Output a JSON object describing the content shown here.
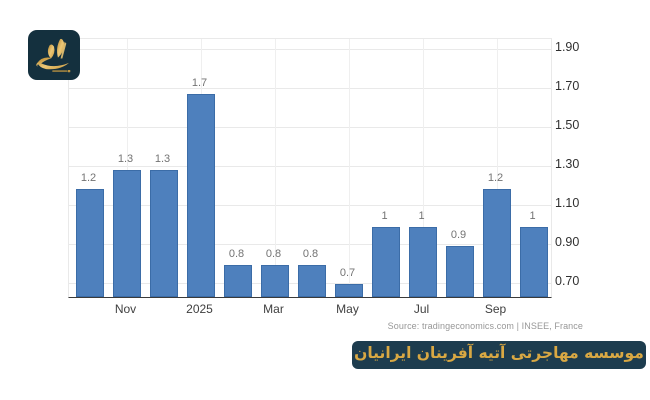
{
  "logo": {
    "name": "atieh-afarinan-logo",
    "background_color": "#14303e",
    "accent_color": "#d2a243",
    "icon": "gold-bird-flame-logo"
  },
  "chart_data": {
    "type": "bar",
    "title": "",
    "xlabel": "",
    "ylabel": "",
    "values": [
      1.2,
      1.3,
      1.3,
      1.7,
      0.8,
      0.8,
      0.8,
      0.7,
      1,
      1,
      0.9,
      1.2,
      1
    ],
    "value_labels": [
      "1.2",
      "1.3",
      "1.3",
      "1.7",
      "0.8",
      "0.8",
      "0.8",
      "0.7",
      "1",
      "1",
      "0.9",
      "1.2",
      "1"
    ],
    "x_ticks": [
      {
        "label": "Nov",
        "bar_index": 1
      },
      {
        "label": "2025",
        "bar_index": 3
      },
      {
        "label": "Mar",
        "bar_index": 5
      },
      {
        "label": "May",
        "bar_index": 7
      },
      {
        "label": "Jul",
        "bar_index": 9
      },
      {
        "label": "Sep",
        "bar_index": 11
      }
    ],
    "y_ticks": [
      "1.90",
      "1.70",
      "1.50",
      "1.30",
      "1.10",
      "0.90",
      "0.70"
    ],
    "y_tick_values": [
      1.9,
      1.7,
      1.5,
      1.3,
      1.1,
      0.9,
      0.7
    ],
    "ylim_shown": [
      0.7,
      1.9
    ],
    "grid": true,
    "legend": "none",
    "bar_color": "#4e80bd",
    "bar_border_color": "#3b6ca7",
    "gridline_color": "#e9e9e9",
    "value_label_color": "#737373",
    "tick_label_color": "#3f3f3f"
  },
  "source": {
    "text": "Source: tradingeconomics.com | INSEE, France"
  },
  "banner": {
    "text": "موسسه مهاجرتی آتیه آفرینان ایرانیان",
    "background_color": "#1d3c4e",
    "text_color": "#d9a843"
  }
}
